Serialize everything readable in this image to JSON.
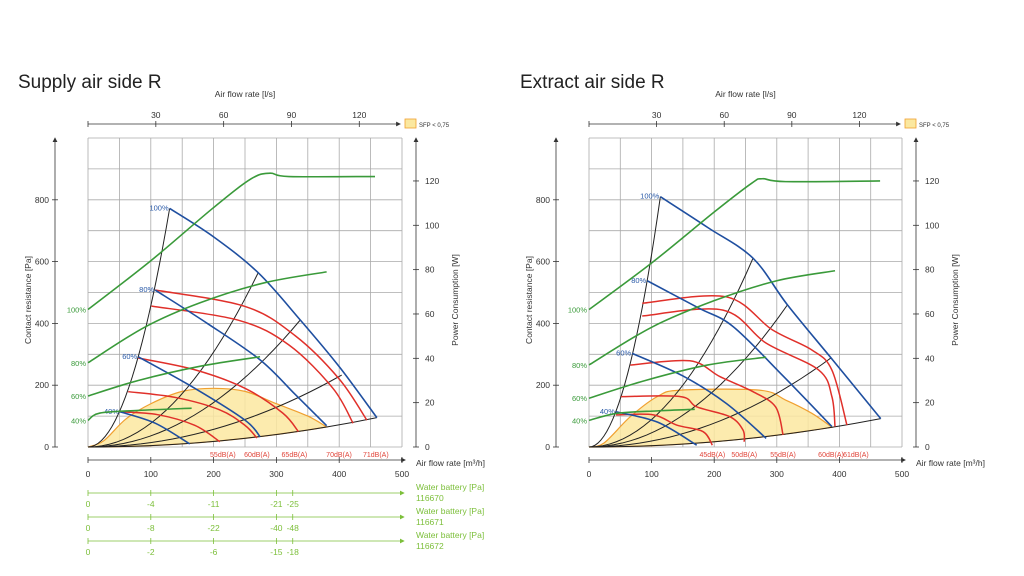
{
  "chart_data": [
    {
      "type": "line",
      "title": "Supply air side R",
      "top_axis": {
        "label": "Air flow rate [l/s]",
        "ticks": [
          30,
          60,
          90,
          120
        ]
      },
      "xlabel": "Air flow rate [m³/h]",
      "xlim": [
        0,
        500
      ],
      "xticks": [
        0,
        100,
        200,
        300,
        400,
        500
      ],
      "ylabel": "Contact resistance [Pa]",
      "ylim": [
        0,
        1000
      ],
      "yticks": [
        0,
        200,
        400,
        600,
        800
      ],
      "y2label": "Power Consumption [W]",
      "y2ticks": [
        0,
        20,
        40,
        60,
        80,
        100,
        120
      ],
      "grid": true,
      "legend": {
        "label": "SFP < 0,75",
        "color": "#fbe8a0",
        "placement": "top-right"
      },
      "fan_curves": [
        {
          "label": "100%",
          "points": [
            [
              130,
              772
            ],
            [
              200,
              680
            ],
            [
              271,
              564
            ],
            [
              338,
              411
            ],
            [
              400,
              260
            ],
            [
              460,
              95
            ]
          ]
        },
        {
          "label": "80%",
          "points": [
            [
              107,
              508
            ],
            [
              190,
              400
            ],
            [
              274,
              282
            ],
            [
              330,
              170
            ],
            [
              380,
              69
            ]
          ]
        },
        {
          "label": "60%",
          "points": [
            [
              80,
              292
            ],
            [
              170,
              190
            ],
            [
              250,
              87
            ],
            [
              274,
              33
            ]
          ]
        },
        {
          "label": "40%",
          "points": [
            [
              51,
              114
            ],
            [
              107,
              77
            ],
            [
              162,
              10
            ]
          ]
        }
      ],
      "system_curves_end": [
        [
          130,
          772
        ],
        [
          271,
          564
        ],
        [
          338,
          411
        ],
        [
          404,
          233
        ],
        [
          460,
          95
        ]
      ],
      "sound_curves": [
        {
          "label": "55dB(A)",
          "points": [
            [
              51,
              114
            ],
            [
              110,
              105
            ],
            [
              170,
              70
            ],
            [
              210,
              17
            ]
          ]
        },
        {
          "label": "60dB(A)",
          "points": [
            [
              64,
              179
            ],
            [
              140,
              160
            ],
            [
              210,
              120
            ],
            [
              250,
              70
            ],
            [
              269,
              29
            ]
          ]
        },
        {
          "label": "65dB(A)",
          "points": [
            [
              80,
              288
            ],
            [
              170,
              250
            ],
            [
              250,
              190
            ],
            [
              310,
              110
            ],
            [
              335,
              50
            ]
          ]
        },
        {
          "label": "70dB(A)",
          "points": [
            [
              101,
              456
            ],
            [
              240,
              410
            ],
            [
              320,
              330
            ],
            [
              390,
              190
            ],
            [
              422,
              77
            ]
          ]
        },
        {
          "label": "71dB(A)",
          "points": [
            [
              107,
              508
            ],
            [
              250,
              455
            ],
            [
              330,
              360
            ],
            [
              400,
              220
            ],
            [
              444,
              87
            ]
          ]
        }
      ],
      "power_curves": [
        {
          "label": "100%",
          "points": [
            [
              0,
              62
            ],
            [
              100,
              84
            ],
            [
              200,
              108
            ],
            [
              260,
              121
            ],
            [
              290,
              123.5
            ],
            [
              320,
              122
            ],
            [
              457,
              122
            ]
          ]
        },
        {
          "label": "80%",
          "points": [
            [
              0,
              38
            ],
            [
              90,
              54
            ],
            [
              178,
              65
            ],
            [
              280,
              74
            ],
            [
              380,
              79
            ]
          ]
        },
        {
          "label": "60%",
          "points": [
            [
              0,
              23
            ],
            [
              80,
              30
            ],
            [
              180,
              36.5
            ],
            [
              274,
              40.7
            ]
          ]
        },
        {
          "label": "40%",
          "points": [
            [
              0,
              12
            ],
            [
              19,
              15.3
            ],
            [
              80,
              16.5
            ],
            [
              165,
              17.5
            ]
          ]
        }
      ],
      "sfp_region": [
        [
          0,
          0
        ],
        [
          25,
          20
        ],
        [
          60,
          90
        ],
        [
          100,
          140
        ],
        [
          150,
          180
        ],
        [
          200,
          190
        ],
        [
          250,
          180
        ],
        [
          300,
          140
        ],
        [
          350,
          100
        ],
        [
          380,
          65
        ]
      ],
      "water_batteries": [
        {
          "label": "Water battery [Pa]",
          "id": "116670",
          "x": [
            0,
            100,
            200,
            300,
            326
          ],
          "values": [
            "0",
            "-4",
            "-11",
            "-21",
            "-25"
          ]
        },
        {
          "label": "Water battery [Pa]",
          "id": "116671",
          "x": [
            0,
            100,
            200,
            300,
            326
          ],
          "values": [
            "0",
            "-8",
            "-22",
            "-40",
            "-48"
          ]
        },
        {
          "label": "Water battery [Pa]",
          "id": "116672",
          "x": [
            0,
            100,
            200,
            300,
            326
          ],
          "values": [
            "0",
            "-2",
            "-6",
            "-15",
            "-18"
          ]
        }
      ]
    },
    {
      "type": "line",
      "title": "Extract air side R",
      "top_axis": {
        "label": "Air flow rate [l/s]",
        "ticks": [
          30,
          60,
          90,
          120
        ]
      },
      "xlabel": "Air flow rate [m³/h]",
      "xlim": [
        0,
        500
      ],
      "xticks": [
        0,
        100,
        200,
        300,
        400,
        500
      ],
      "ylabel": "Contact resistance [Pa]",
      "ylim": [
        0,
        1000
      ],
      "yticks": [
        0,
        200,
        400,
        600,
        800
      ],
      "y2label": "Power Consumption [W]",
      "y2ticks": [
        0,
        20,
        40,
        60,
        80,
        100,
        120
      ],
      "grid": true,
      "legend": {
        "label": "SFP < 0,75",
        "color": "#fbe8a0",
        "placement": "top-right"
      },
      "fan_curves": [
        {
          "label": "100%",
          "points": [
            [
              114,
              810
            ],
            [
              190,
              710
            ],
            [
              262,
              611
            ],
            [
              317,
              460
            ],
            [
              390,
              280
            ],
            [
              466,
              92
            ]
          ]
        },
        {
          "label": "80%",
          "points": [
            [
              93,
              538
            ],
            [
              175,
              450
            ],
            [
              230,
              390
            ],
            [
              310,
              230
            ],
            [
              388,
              66
            ]
          ]
        },
        {
          "label": "60%",
          "points": [
            [
              69,
              303
            ],
            [
              150,
              230
            ],
            [
              220,
              140
            ],
            [
              283,
              28
            ]
          ]
        },
        {
          "label": "40%",
          "points": [
            [
              43,
              114
            ],
            [
              110,
              80
            ],
            [
              172,
              6
            ]
          ]
        }
      ],
      "system_curves_end": [
        [
          114,
          810
        ],
        [
          262,
          611
        ],
        [
          317,
          460
        ],
        [
          387,
          289
        ],
        [
          466,
          92
        ]
      ],
      "sound_curves": [
        {
          "label": "45dB(A)",
          "points": [
            [
              43,
              104
            ],
            [
              103,
              104
            ],
            [
              140,
              71
            ],
            [
              182,
              50
            ],
            [
              197,
              6
            ]
          ]
        },
        {
          "label": "50dB(A)",
          "points": [
            [
              51,
              163
            ],
            [
              146,
              163
            ],
            [
              172,
              130
            ],
            [
              225,
              98
            ],
            [
              246,
              55
            ],
            [
              248,
              17
            ]
          ]
        },
        {
          "label": "55dB(A)",
          "points": [
            [
              66,
              265
            ],
            [
              161,
              279
            ],
            [
              209,
              228
            ],
            [
              262,
              179
            ],
            [
              298,
              130
            ],
            [
              310,
              39
            ]
          ]
        },
        {
          "label": "60dB(A)",
          "points": [
            [
              85,
              424
            ],
            [
              214,
              443
            ],
            [
              283,
              336
            ],
            [
              367,
              249
            ],
            [
              388,
              163
            ],
            [
              393,
              66
            ]
          ]
        },
        {
          "label": "61dB(A)",
          "points": [
            [
              85,
              465
            ],
            [
              219,
              486
            ],
            [
              293,
              379
            ],
            [
              356,
              314
            ],
            [
              388,
              249
            ],
            [
              412,
              71
            ]
          ]
        }
      ],
      "power_curves": [
        {
          "label": "100%",
          "points": [
            [
              0,
              62
            ],
            [
              100,
              83
            ],
            [
              200,
              106
            ],
            [
              260,
              119
            ],
            [
              277,
              121
            ],
            [
              314,
              119.7
            ],
            [
              465,
              120
            ]
          ]
        },
        {
          "label": "80%",
          "points": [
            [
              0,
              37
            ],
            [
              100,
              54
            ],
            [
              200,
              66
            ],
            [
              300,
              75
            ],
            [
              393,
              79.5
            ]
          ]
        },
        {
          "label": "60%",
          "points": [
            [
              0,
              22
            ],
            [
              90,
              30
            ],
            [
              190,
              37
            ],
            [
              283,
              40.5
            ]
          ]
        },
        {
          "label": "40%",
          "points": [
            [
              0,
              12
            ],
            [
              45,
              15.2
            ],
            [
              110,
              16.3
            ],
            [
              169,
              17
            ]
          ]
        }
      ],
      "sfp_region": [
        [
          0,
          0
        ],
        [
          24,
          13
        ],
        [
          66,
          98
        ],
        [
          109,
          163
        ],
        [
          146,
          184
        ],
        [
          272,
          184
        ],
        [
          314,
          152
        ],
        [
          356,
          109
        ],
        [
          388,
          64
        ]
      ]
    }
  ]
}
